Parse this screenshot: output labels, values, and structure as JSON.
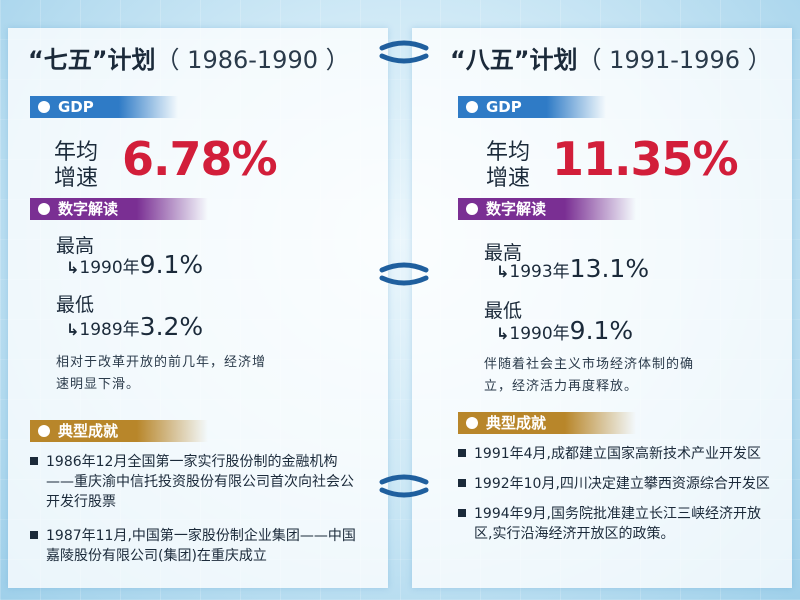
{
  "left": {
    "title": "“七五”计划",
    "years": "（ 1986-1990 ）",
    "gdp_tag": "GDP",
    "gdp_label_1": "年均",
    "gdp_label_2": "增速",
    "gdp_value": "6.78%",
    "digits_tag": "数字解读",
    "high_label": "最高",
    "high_year": "1990年",
    "high_value": "9.1%",
    "low_label": "最低",
    "low_year": "1989年",
    "low_value": "3.2%",
    "desc_1": "相对于改革开放的前几年，经济增",
    "desc_2": "速明显下滑。",
    "ach_tag": "典型成就",
    "achievements": [
      "1986年12月全国第一家实行股份制的金融机构——重庆渝中信托投资股份有限公司首次向社会公开发行股票",
      "1987年11月,中国第一家股份制企业集团——中国嘉陵股份有限公司(集团)在重庆成立"
    ]
  },
  "right": {
    "title": "“八五”计划",
    "years": "（ 1991-1996 ）",
    "gdp_tag": "GDP",
    "gdp_label_1": "年均",
    "gdp_label_2": "增速",
    "gdp_value": "11.35%",
    "digits_tag": "数字解读",
    "high_label": "最高",
    "high_year": "1993年",
    "high_value": "13.1%",
    "low_label": "最低",
    "low_year": "1990年",
    "low_value": "9.1%",
    "desc_1": "伴随着社会主义市场经济体制的确",
    "desc_2": "立，经济活力再度释放。",
    "ach_tag": "典型成就",
    "achievements": [
      "1991年4月,成都建立国家高新技术产业开发区",
      "1992年10月,四川决定建立攀西资源综合开发区",
      "1994年9月,国务院批准建立长江三峡经济开放区,实行沿海经济开放区的政策。"
    ]
  },
  "colors": {
    "gdp_value": "#d21e3a",
    "tag_gdp": "#2f7bc6",
    "tag_digits": "#7a2f93",
    "tag_achievements": "#b8862a"
  },
  "icons": {
    "connector": "chain-link-icon",
    "arrow": "return-arrow-icon"
  }
}
